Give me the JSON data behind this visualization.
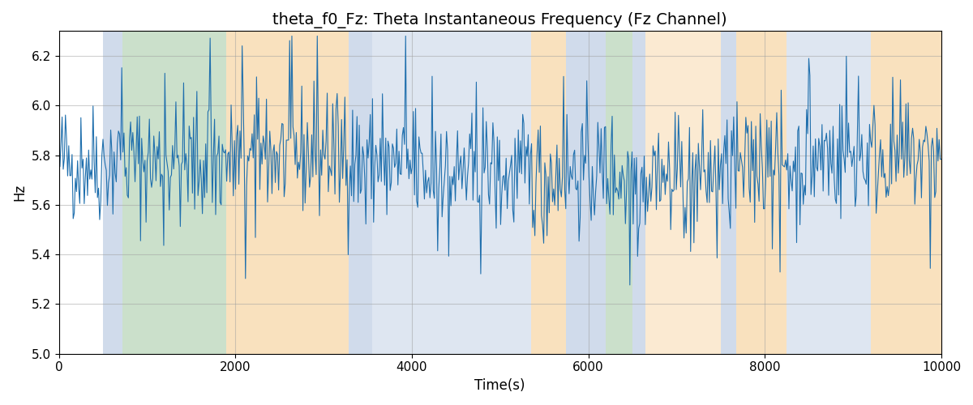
{
  "title": "theta_f0_Fz: Theta Instantaneous Frequency (Fz Channel)",
  "xlabel": "Time(s)",
  "ylabel": "Hz",
  "xlim": [
    0,
    10000
  ],
  "ylim": [
    5.0,
    6.3
  ],
  "line_color": "#1f6fad",
  "line_width": 0.8,
  "seed": 42,
  "n_points": 800,
  "mean_freq": 5.75,
  "std_freq": 0.12,
  "background_regions": [
    {
      "xstart": 500,
      "xend": 720,
      "color": "#aabfdb",
      "alpha": 0.55
    },
    {
      "xstart": 720,
      "xend": 1900,
      "color": "#8dbc8d",
      "alpha": 0.45
    },
    {
      "xstart": 1900,
      "xend": 3280,
      "color": "#f5c98a",
      "alpha": 0.55
    },
    {
      "xstart": 3280,
      "xend": 3550,
      "color": "#aabfdb",
      "alpha": 0.55
    },
    {
      "xstart": 3550,
      "xend": 5350,
      "color": "#aabfdb",
      "alpha": 0.38
    },
    {
      "xstart": 5350,
      "xend": 5750,
      "color": "#f5c98a",
      "alpha": 0.55
    },
    {
      "xstart": 5750,
      "xend": 6200,
      "color": "#aabfdb",
      "alpha": 0.55
    },
    {
      "xstart": 6200,
      "xend": 6500,
      "color": "#8dbc8d",
      "alpha": 0.45
    },
    {
      "xstart": 6500,
      "xend": 6650,
      "color": "#aabfdb",
      "alpha": 0.55
    },
    {
      "xstart": 6650,
      "xend": 7500,
      "color": "#f5c98a",
      "alpha": 0.38
    },
    {
      "xstart": 7500,
      "xend": 7680,
      "color": "#aabfdb",
      "alpha": 0.55
    },
    {
      "xstart": 7680,
      "xend": 8250,
      "color": "#f5c98a",
      "alpha": 0.55
    },
    {
      "xstart": 8250,
      "xend": 9200,
      "color": "#aabfdb",
      "alpha": 0.38
    },
    {
      "xstart": 9200,
      "xend": 10000,
      "color": "#f5c98a",
      "alpha": 0.55
    }
  ],
  "yticks": [
    5.0,
    5.2,
    5.4,
    5.6,
    5.8,
    6.0,
    6.2
  ],
  "xticks": [
    0,
    2000,
    4000,
    6000,
    8000,
    10000
  ],
  "grid": true,
  "grid_color": "#a0a0a0",
  "grid_alpha": 0.5,
  "title_fontsize": 14,
  "label_fontsize": 12,
  "tick_fontsize": 11,
  "fig_width": 12.0,
  "fig_height": 5.0,
  "dpi": 100
}
